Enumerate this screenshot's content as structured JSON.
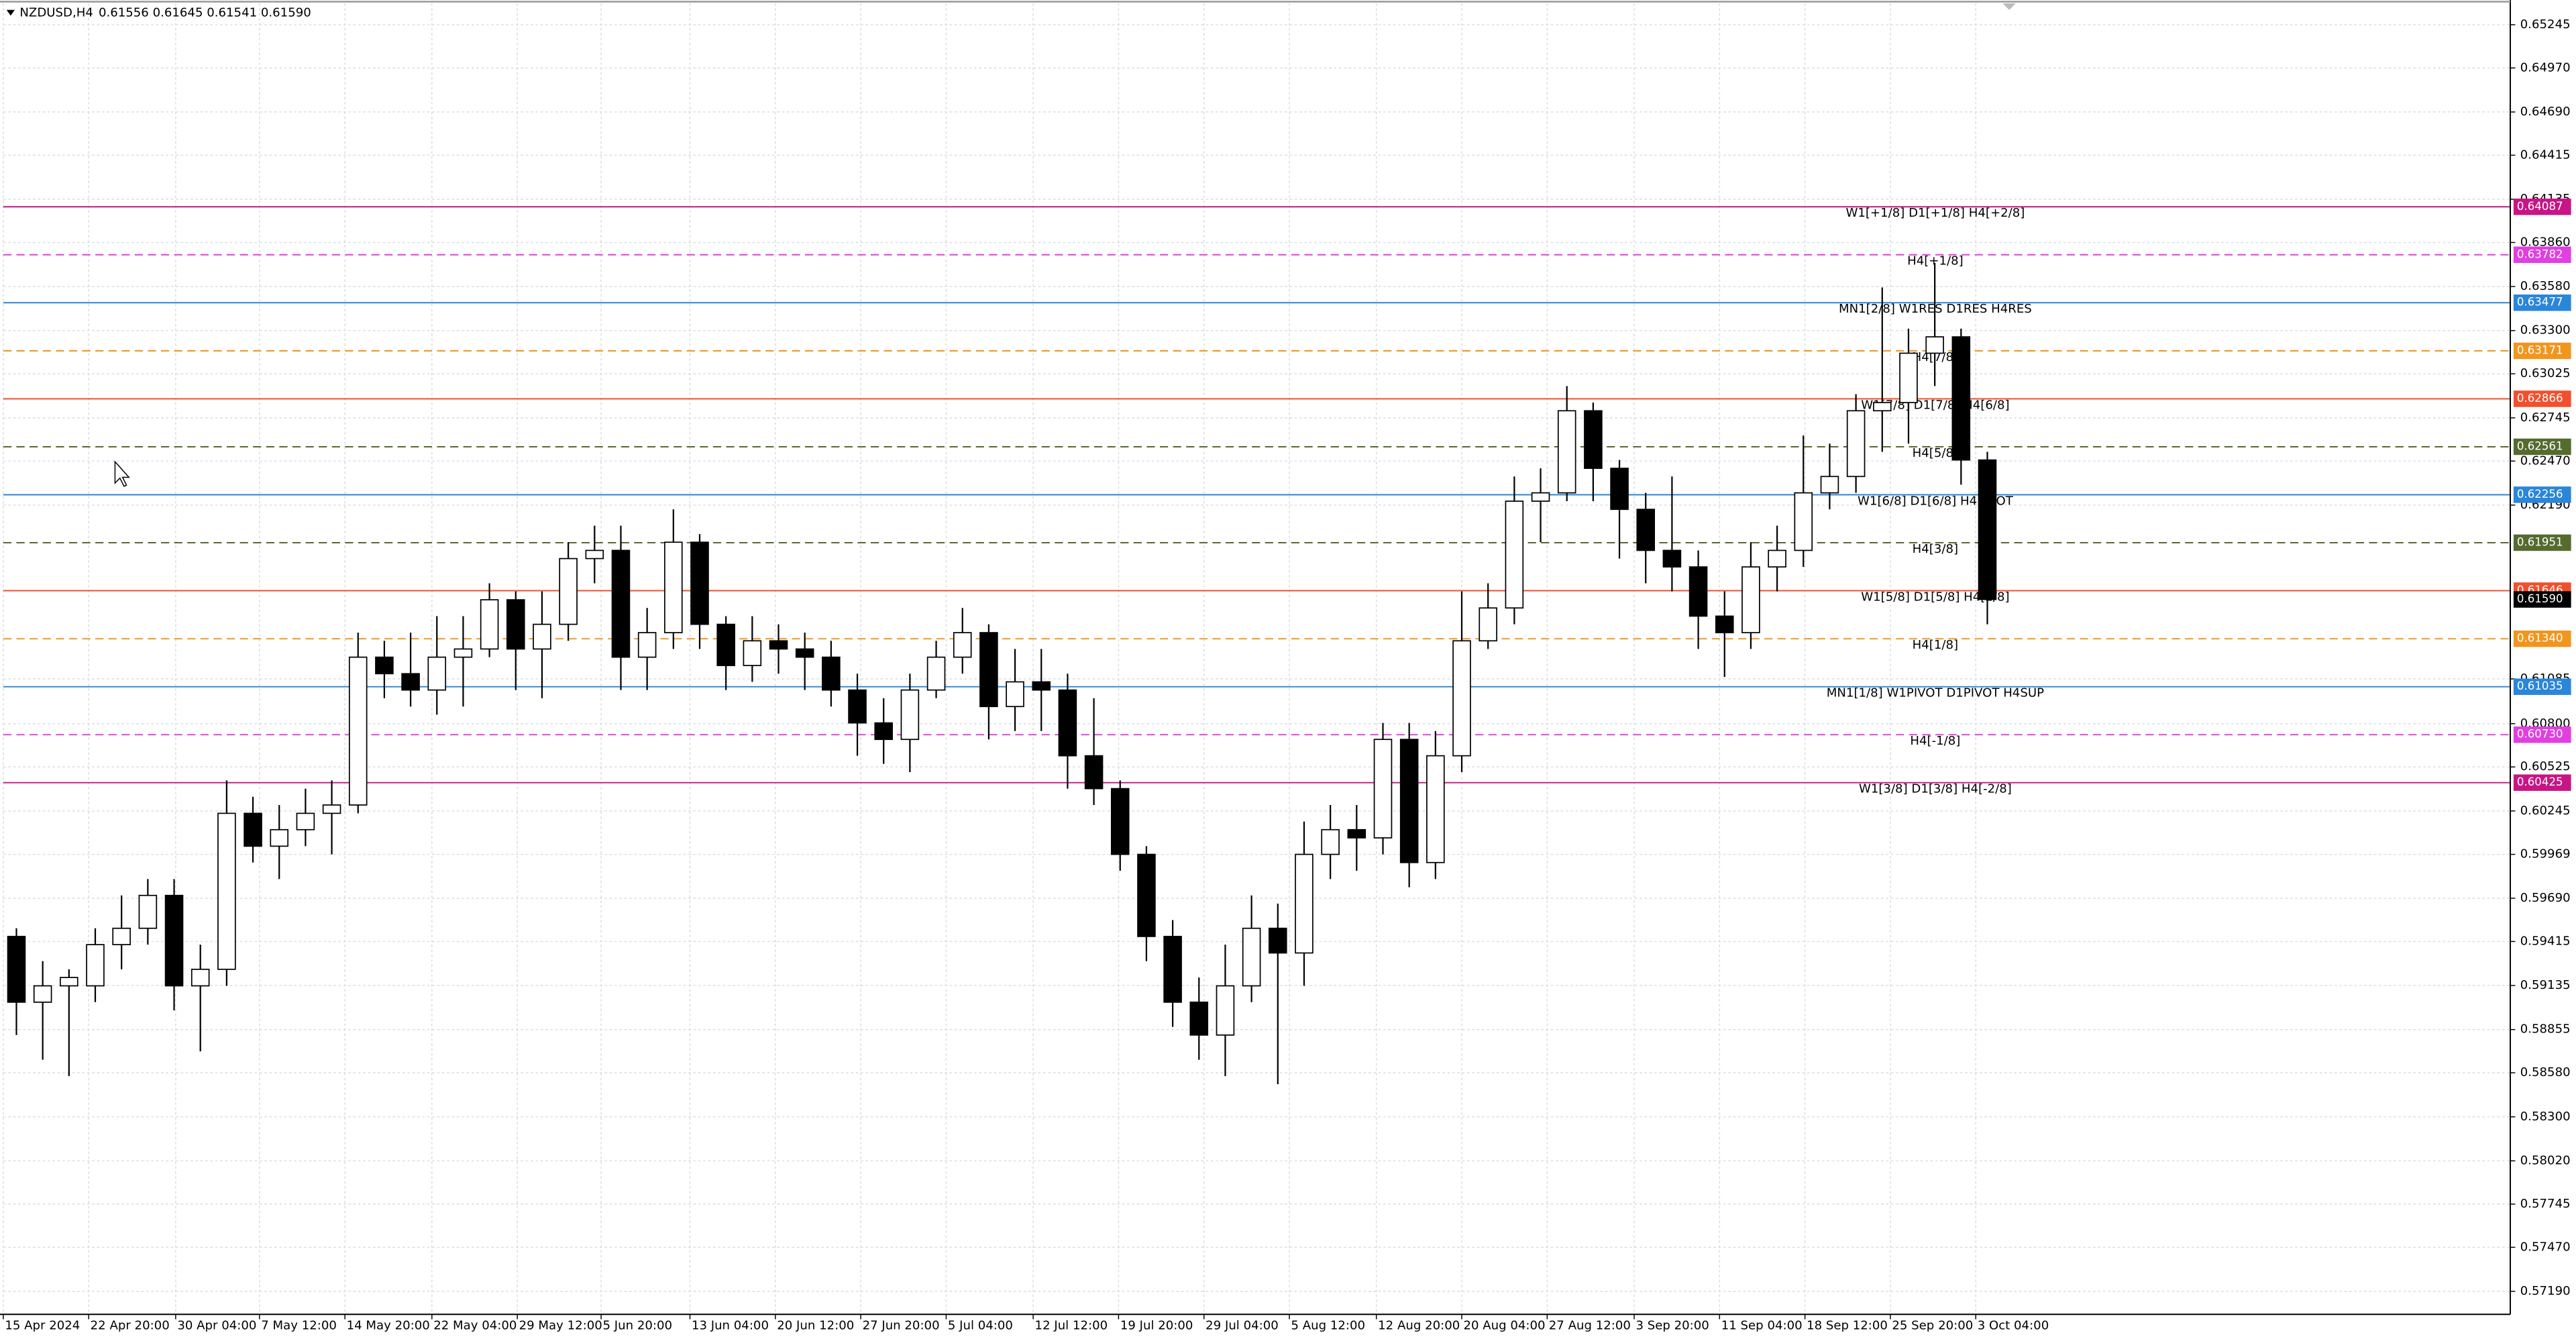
{
  "chart_data": {
    "type": "candlestick",
    "title": "NZDUSD,H4",
    "readout": "0.61556 0.61645 0.61541 0.61590",
    "open": [
      0.59447,
      0.59029,
      0.59133,
      0.59133,
      0.59395,
      0.59499,
      0.59708,
      0.59133,
      0.59238,
      0.6023,
      0.60021,
      0.60126,
      0.6023,
      0.60283,
      0.61223,
      0.61118,
      0.61014,
      0.61223,
      0.61275,
      0.61588,
      0.61275,
      0.61432,
      0.6185,
      0.61902,
      0.61223,
      0.61379,
      0.61954,
      0.61432,
      0.6117,
      0.61327,
      0.61275,
      0.61223,
      0.61014,
      0.60805,
      0.607,
      0.61014,
      0.61223,
      0.61379,
      0.60909,
      0.61066,
      0.61014,
      0.60596,
      0.60387,
      0.59969,
      0.59447,
      0.59029,
      0.5882,
      0.59133,
      0.59499,
      0.59342,
      0.59969,
      0.60126,
      0.60074,
      0.607,
      0.59917,
      0.60596,
      0.61327,
      0.61536,
      0.62215,
      0.62268,
      0.6279,
      0.62424,
      0.62163,
      0.61902,
      0.61797,
      0.61484,
      0.61379,
      0.61797,
      0.61902,
      0.62268,
      0.62372,
      0.6279,
      0.62842,
      0.63156,
      0.6326,
      0.62477
    ],
    "high": [
      0.59499,
      0.5929,
      0.59238,
      0.59499,
      0.59708,
      0.59812,
      0.59812,
      0.59395,
      0.60439,
      0.60335,
      0.60283,
      0.60387,
      0.60439,
      0.61379,
      0.61327,
      0.61379,
      0.61484,
      0.61484,
      0.61693,
      0.61641,
      0.61641,
      0.61954,
      0.62059,
      0.62059,
      0.61536,
      0.62163,
      0.62006,
      0.61484,
      0.61484,
      0.61432,
      0.61379,
      0.61327,
      0.61118,
      0.60962,
      0.61118,
      0.61327,
      0.61536,
      0.61432,
      0.61275,
      0.61275,
      0.61118,
      0.60962,
      0.60439,
      0.60021,
      0.59551,
      0.59186,
      0.59395,
      0.59708,
      0.59656,
      0.60178,
      0.60283,
      0.60283,
      0.60805,
      0.60805,
      0.60753,
      0.61641,
      0.61693,
      0.62372,
      0.62424,
      0.62947,
      0.62842,
      0.62477,
      0.62268,
      0.62372,
      0.61902,
      0.61641,
      0.61954,
      0.62059,
      0.62633,
      0.62581,
      0.62895,
      0.63574,
      0.63312,
      0.6373,
      0.63312,
      0.62529
    ],
    "low": [
      0.5882,
      0.58663,
      0.58559,
      0.59029,
      0.59238,
      0.59395,
      0.58977,
      0.58716,
      0.59133,
      0.59917,
      0.59812,
      0.60021,
      0.59969,
      0.6023,
      0.60962,
      0.60909,
      0.60857,
      0.60909,
      0.61223,
      0.61014,
      0.60962,
      0.61327,
      0.61693,
      0.61014,
      0.61014,
      0.61275,
      0.61275,
      0.61014,
      0.61066,
      0.61118,
      0.61014,
      0.60909,
      0.60596,
      0.60544,
      0.60492,
      0.60962,
      0.61118,
      0.607,
      0.60753,
      0.60753,
      0.60387,
      0.60283,
      0.59865,
      0.5929,
      0.58872,
      0.58663,
      0.58559,
      0.59029,
      0.58507,
      0.59133,
      0.59812,
      0.59865,
      0.59969,
      0.5976,
      0.59812,
      0.60492,
      0.61275,
      0.61432,
      0.61954,
      0.62215,
      0.62215,
      0.6185,
      0.61693,
      0.61641,
      0.61275,
      0.61097,
      0.61275,
      0.61641,
      0.61797,
      0.62163,
      0.62268,
      0.62529,
      0.62581,
      0.62947,
      0.6232,
      0.61432
    ],
    "close": [
      0.59029,
      0.59133,
      0.59186,
      0.59395,
      0.59499,
      0.59708,
      0.59133,
      0.59238,
      0.6023,
      0.60021,
      0.60126,
      0.6023,
      0.60283,
      0.61223,
      0.61118,
      0.61014,
      0.61223,
      0.61275,
      0.61588,
      0.61275,
      0.61432,
      0.6185,
      0.61902,
      0.61223,
      0.61379,
      0.61954,
      0.61432,
      0.6117,
      0.61327,
      0.61275,
      0.61223,
      0.61014,
      0.60805,
      0.607,
      0.61014,
      0.61223,
      0.61379,
      0.60909,
      0.61066,
      0.61014,
      0.60596,
      0.60387,
      0.59969,
      0.59447,
      0.59029,
      0.5882,
      0.59133,
      0.59499,
      0.59342,
      0.59969,
      0.60126,
      0.60074,
      0.607,
      0.59917,
      0.60596,
      0.61327,
      0.61536,
      0.62215,
      0.62268,
      0.6279,
      0.62424,
      0.62163,
      0.61902,
      0.61797,
      0.61484,
      0.61379,
      0.61797,
      0.61902,
      0.62268,
      0.62372,
      0.6279,
      0.62842,
      0.63156,
      0.6326,
      0.62477,
      0.6159
    ],
    "up_color": "#ffffff",
    "down_color": "#000000",
    "wick_color": "#000000",
    "xlim": [
      -0.5,
      94.9
    ],
    "ylim": [
      0.57044,
      0.65381
    ],
    "xticks": [
      {
        "value": -0.5,
        "label": "15 Apr 2024"
      },
      {
        "value": 2.75,
        "label": "22 Apr 20:00"
      },
      {
        "value": 6.06,
        "label": "30 Apr 04:00"
      },
      {
        "value": 9.25,
        "label": "7 May 12:00"
      },
      {
        "value": 12.5,
        "label": "14 May 20:00"
      },
      {
        "value": 15.81,
        "label": "22 May 04:00"
      },
      {
        "value": 19.06,
        "label": "29 May 12:00"
      },
      {
        "value": 22.25,
        "label": "5 Jun 20:00"
      },
      {
        "value": 25.63,
        "label": "13 Jun 04:00"
      },
      {
        "value": 28.88,
        "label": "20 Jun 12:00"
      },
      {
        "value": 32.13,
        "label": "27 Jun 20:00"
      },
      {
        "value": 35.38,
        "label": "5 Jul 04:00"
      },
      {
        "value": 38.69,
        "label": "12 Jul 12:00"
      },
      {
        "value": 41.94,
        "label": "19 Jul 20:00"
      },
      {
        "value": 45.19,
        "label": "29 Jul 04:00"
      },
      {
        "value": 48.44,
        "label": "5 Aug 12:00"
      },
      {
        "value": 51.75,
        "label": "12 Aug 20:00"
      },
      {
        "value": 55,
        "label": "20 Aug 04:00"
      },
      {
        "value": 58.25,
        "label": "27 Aug 12:00"
      },
      {
        "value": 61.56,
        "label": "3 Sep 20:00"
      },
      {
        "value": 64.81,
        "label": "11 Sep 04:00"
      },
      {
        "value": 68.06,
        "label": "18 Sep 12:00"
      },
      {
        "value": 71.31,
        "label": "25 Sep 20:00"
      },
      {
        "value": 74.56,
        "label": "3 Oct 04:00"
      }
    ],
    "yticks": [
      {
        "value": 0.65245,
        "label": "0.65245"
      },
      {
        "value": 0.6497,
        "label": "0.64970"
      },
      {
        "value": 0.6469,
        "label": "0.64690"
      },
      {
        "value": 0.64415,
        "label": "0.64415"
      },
      {
        "value": 0.64135,
        "label": "0.64135"
      },
      {
        "value": 0.6386,
        "label": "0.63860"
      },
      {
        "value": 0.6358,
        "label": "0.63580"
      },
      {
        "value": 0.633,
        "label": "0.63300"
      },
      {
        "value": 0.63025,
        "label": "0.63025"
      },
      {
        "value": 0.62745,
        "label": "0.62745"
      },
      {
        "value": 0.6247,
        "label": "0.62470"
      },
      {
        "value": 0.6219,
        "label": "0.62190"
      },
      {
        "value": 0.61085,
        "label": "0.61085"
      },
      {
        "value": 0.608,
        "label": "0.60800"
      },
      {
        "value": 0.60525,
        "label": "0.60525"
      },
      {
        "value": 0.60245,
        "label": "0.60245"
      },
      {
        "value": 0.59969,
        "label": "0.59969"
      },
      {
        "value": 0.5969,
        "label": "0.59690"
      },
      {
        "value": 0.59415,
        "label": "0.59415"
      },
      {
        "value": 0.59135,
        "label": "0.59135"
      },
      {
        "value": 0.58855,
        "label": "0.58855"
      },
      {
        "value": 0.5858,
        "label": "0.58580"
      },
      {
        "value": 0.583,
        "label": "0.58300"
      },
      {
        "value": 0.5802,
        "label": "0.58020"
      },
      {
        "value": 0.57745,
        "label": "0.57745"
      },
      {
        "value": 0.5747,
        "label": "0.57470"
      },
      {
        "value": 0.5719,
        "label": "0.57190"
      }
    ],
    "grid": true,
    "levels": [
      {
        "value": 0.64087,
        "label": "W1[+1/8] D1[+1/8] H4[+2/8]",
        "color": "#c71585",
        "dashed": false
      },
      {
        "value": 0.63782,
        "label": "H4[+1/8]",
        "color": "#e040e0",
        "dashed": true
      },
      {
        "value": 0.63477,
        "label": "MN1[2/8] W1RES D1RES H4RES",
        "color": "#2a86d8",
        "dashed": false
      },
      {
        "value": 0.63171,
        "label": "H4[7/8]",
        "color": "#f0961e",
        "dashed": true
      },
      {
        "value": 0.62866,
        "label": "W1[7/8] D1[7/8] H4[6/8]",
        "color": "#f0502d",
        "dashed": false
      },
      {
        "value": 0.62561,
        "label": "H4[5/8]",
        "color": "#556b2f",
        "dashed": true
      },
      {
        "value": 0.62256,
        "label": "W1[6/8] D1[6/8] H4PIVOT",
        "color": "#2a86d8",
        "dashed": false
      },
      {
        "value": 0.61951,
        "label": "H4[3/8]",
        "color": "#556b2f",
        "dashed": true
      },
      {
        "value": 0.61646,
        "label": "W1[5/8] D1[5/8] H4[2/8]",
        "color": "#f0502d",
        "dashed": false
      },
      {
        "value": 0.6134,
        "label": "H4[1/8]",
        "color": "#f0961e",
        "dashed": true
      },
      {
        "value": 0.61035,
        "label": "MN1[1/8] W1PIVOT D1PIVOT H4SUP",
        "color": "#2a86d8",
        "dashed": false
      },
      {
        "value": 0.6073,
        "label": "H4[-1/8]",
        "color": "#e040e0",
        "dashed": true
      },
      {
        "value": 0.60425,
        "label": "W1[3/8] D1[3/8] H4[-2/8]",
        "color": "#c71585",
        "dashed": false
      }
    ],
    "level_value_labels": [
      "0.64087",
      "0.63782",
      "0.63477",
      "0.63171",
      "0.62866",
      "0.62561",
      "0.62256",
      "0.61951",
      "0.61646",
      "0.61340",
      "0.61035",
      "0.60730",
      "0.60425"
    ],
    "current_price": {
      "value": 0.6159,
      "label": "0.61590"
    }
  }
}
